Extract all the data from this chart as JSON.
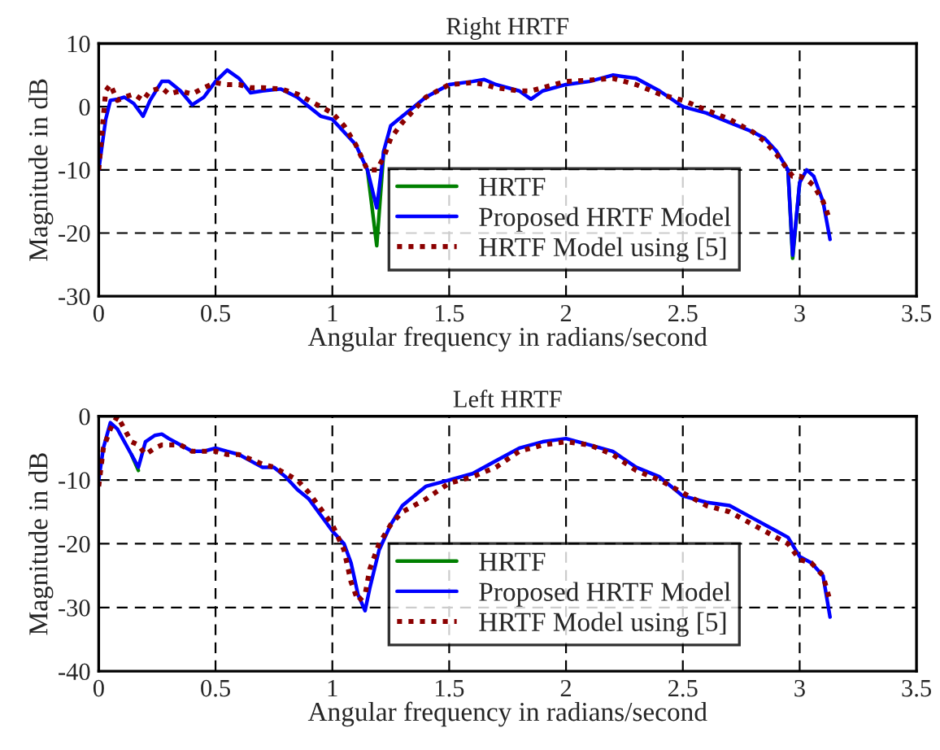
{
  "chart_data": [
    {
      "type": "line",
      "title": "Right HRTF",
      "xlabel": "Angular frequency in radians/second",
      "ylabel": "Magnitude in dB",
      "xlim": [
        0,
        3.5
      ],
      "xticks": [
        0,
        0.5,
        1,
        1.5,
        2,
        2.5,
        3,
        3.5
      ],
      "ylim": [
        -30,
        10
      ],
      "yticks": [
        -30,
        -20,
        -10,
        0,
        10
      ],
      "grid": true,
      "legend": "bottom right",
      "x": [
        0,
        0.03,
        0.05,
        0.08,
        0.11,
        0.15,
        0.19,
        0.22,
        0.27,
        0.3,
        0.35,
        0.4,
        0.45,
        0.5,
        0.55,
        0.6,
        0.65,
        0.7,
        0.78,
        0.85,
        0.9,
        0.95,
        1.0,
        1.05,
        1.1,
        1.15,
        1.19,
        1.22,
        1.25,
        1.3,
        1.35,
        1.4,
        1.5,
        1.6,
        1.65,
        1.7,
        1.8,
        1.85,
        1.9,
        2.0,
        2.1,
        2.2,
        2.3,
        2.4,
        2.5,
        2.6,
        2.7,
        2.8,
        2.85,
        2.9,
        2.95,
        2.97,
        3.0,
        3.03,
        3.06,
        3.1,
        3.13
      ],
      "series": [
        {
          "name": "HRTF",
          "color": "#008000",
          "line_style": "solid",
          "values": [
            null,
            null,
            null,
            null,
            null,
            null,
            null,
            null,
            null,
            null,
            null,
            null,
            null,
            null,
            null,
            null,
            null,
            null,
            null,
            null,
            null,
            null,
            null,
            null,
            null,
            -10,
            -22,
            -7,
            null,
            null,
            null,
            null,
            null,
            null,
            null,
            null,
            null,
            null,
            null,
            null,
            null,
            null,
            null,
            null,
            null,
            null,
            null,
            null,
            null,
            null,
            -10,
            -24,
            -12,
            null,
            null,
            null,
            null
          ]
        },
        {
          "name": "Proposed HRTF Model",
          "color": "#0000ff",
          "line_style": "solid",
          "values": [
            -10,
            -2,
            1,
            1.2,
            1.5,
            0.5,
            -1.5,
            1,
            4,
            4,
            2.5,
            0.3,
            1.5,
            4,
            5.8,
            4.5,
            2.2,
            2.5,
            2.8,
            1.5,
            0,
            -1.5,
            -2,
            -4,
            -6,
            -10,
            -16,
            -7,
            -3,
            -1.5,
            0,
            1.5,
            3.5,
            4,
            4.3,
            3.5,
            2.5,
            1.2,
            2.5,
            3.5,
            4,
            5,
            4.5,
            2.5,
            0,
            -1,
            -2.5,
            -4,
            -5,
            -7,
            -10,
            -23.5,
            -12,
            -10,
            -11,
            -15,
            -21
          ]
        },
        {
          "name": "HRTF Model using [5]",
          "color": "#8b0000",
          "line_style": "dotted",
          "values": [
            -10,
            2.5,
            3.5,
            1,
            1.5,
            2,
            1,
            2.5,
            3,
            2,
            2.5,
            2,
            3,
            3.8,
            3.5,
            3.5,
            3,
            3,
            2.8,
            2,
            1,
            0,
            -1,
            -3,
            -6,
            -10,
            -10,
            -8,
            -5,
            -2.5,
            -0.5,
            1.5,
            3.5,
            3.8,
            3.5,
            3,
            2.5,
            2.5,
            3,
            4,
            4.2,
            4.5,
            3.5,
            2,
            1,
            -0.5,
            -2,
            -4,
            -5.5,
            -7.5,
            -10,
            -11,
            -11,
            -11.5,
            -12.5,
            -15,
            -18
          ]
        }
      ]
    },
    {
      "type": "line",
      "title": "Left HRTF",
      "xlabel": "Angular frequency in radians/second",
      "ylabel": "Magnitude in dB",
      "xlim": [
        0,
        3.5
      ],
      "xticks": [
        0,
        0.5,
        1,
        1.5,
        2,
        2.5,
        3,
        3.5
      ],
      "ylim": [
        -40,
        0
      ],
      "yticks": [
        -40,
        -30,
        -20,
        -10,
        0
      ],
      "grid": true,
      "legend": "bottom right",
      "x": [
        0,
        0.02,
        0.05,
        0.08,
        0.11,
        0.14,
        0.17,
        0.2,
        0.24,
        0.27,
        0.3,
        0.35,
        0.4,
        0.45,
        0.5,
        0.55,
        0.6,
        0.7,
        0.75,
        0.8,
        0.85,
        0.9,
        0.95,
        1.0,
        1.05,
        1.08,
        1.11,
        1.14,
        1.16,
        1.2,
        1.25,
        1.3,
        1.4,
        1.5,
        1.6,
        1.7,
        1.8,
        1.9,
        2.0,
        2.1,
        2.2,
        2.3,
        2.4,
        2.5,
        2.6,
        2.7,
        2.8,
        2.9,
        2.95,
        3.0,
        3.05,
        3.1,
        3.13
      ],
      "series": [
        {
          "name": "HRTF",
          "color": "#008000",
          "line_style": "solid",
          "values": [
            null,
            null,
            null,
            null,
            null,
            -6,
            -8.5,
            null,
            null,
            null,
            null,
            null,
            null,
            null,
            null,
            null,
            null,
            null,
            null,
            null,
            null,
            null,
            null,
            null,
            null,
            null,
            null,
            null,
            null,
            null,
            null,
            null,
            null,
            null,
            null,
            null,
            null,
            null,
            null,
            null,
            null,
            null,
            null,
            null,
            null,
            null,
            null,
            null,
            null,
            null,
            null,
            null,
            null
          ]
        },
        {
          "name": "Proposed HRTF Model",
          "color": "#0000ff",
          "line_style": "solid",
          "values": [
            -10,
            -5,
            -1,
            -2,
            -4,
            -6,
            -8,
            -4,
            -3,
            -2.8,
            -3.5,
            -4.5,
            -5.5,
            -5.5,
            -5,
            -5.5,
            -6,
            -8,
            -8,
            -9.5,
            -11.5,
            -13,
            -15.5,
            -18,
            -20,
            -23,
            -28,
            -30.5,
            -27,
            -21,
            -17,
            -14,
            -11,
            -10,
            -9,
            -7,
            -5,
            -4,
            -3.5,
            -4.5,
            -5.5,
            -8,
            -9.5,
            -12.5,
            -13.5,
            -14,
            -16,
            -18,
            -19,
            -22,
            -23,
            -25,
            -31.5
          ]
        },
        {
          "name": "HRTF Model using [5]",
          "color": "#8b0000",
          "line_style": "dotted",
          "values": [
            -11,
            -5,
            -2,
            0,
            -2,
            -4,
            -4.5,
            -6,
            -5,
            -4.5,
            -4.5,
            -4.5,
            -5.5,
            -5.5,
            -5.5,
            -6,
            -6,
            -7.5,
            -8,
            -9,
            -10,
            -12,
            -14.5,
            -17,
            -21,
            -26,
            -29,
            -28,
            -24,
            -20,
            -17,
            -15,
            -13,
            -10.5,
            -9.5,
            -8,
            -5.5,
            -4.5,
            -4,
            -4.5,
            -6,
            -8.5,
            -10,
            -12,
            -14,
            -15,
            -17,
            -19,
            -20,
            -22.5,
            -23,
            -25,
            -29
          ]
        }
      ]
    }
  ]
}
